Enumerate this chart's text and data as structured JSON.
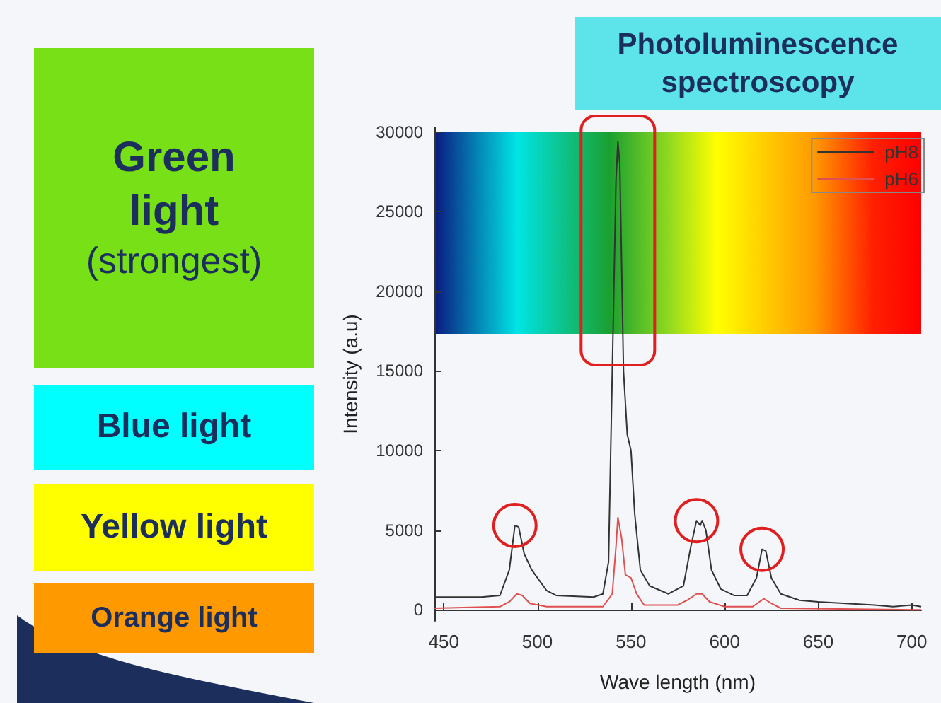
{
  "chart_data": {
    "type": "line",
    "title": "Photoluminescence spectroscopy",
    "xlabel": "Wave length (nm)",
    "ylabel": "Intensity (a.u)",
    "annotations": [
      "Green light\n(strongest)",
      "Blue light",
      "Yellow light",
      "Orange light"
    ],
    "xlim": [
      445,
      705
    ],
    "xticks": [
      450,
      500,
      550,
      600,
      650,
      700
    ],
    "ylim": [
      -700,
      30300
    ],
    "yticks": [
      0,
      5000,
      10000,
      15000,
      20000,
      25000,
      30000
    ],
    "grid": false,
    "legend": "top right",
    "marker": "none",
    "line_style": "solid",
    "series": [
      {
        "name": "pH8",
        "color": "#333333",
        "x": [
          445,
          470,
          480,
          485,
          488,
          490,
          493,
          497,
          505,
          510,
          530,
          535,
          538,
          540,
          542,
          543,
          544,
          546,
          548,
          550,
          552,
          555,
          560,
          570,
          578,
          582,
          585,
          587,
          588,
          590,
          593,
          598,
          605,
          612,
          617,
          620,
          622,
          625,
          630,
          640,
          650,
          680,
          690,
          700,
          705
        ],
        "values": [
          800,
          800,
          900,
          2500,
          5300,
          5200,
          3500,
          2500,
          1200,
          900,
          800,
          1000,
          3000,
          15000,
          27000,
          29400,
          28000,
          15000,
          11000,
          10000,
          6000,
          2500,
          1500,
          1000,
          1500,
          4000,
          5600,
          5300,
          5600,
          5000,
          2500,
          1300,
          900,
          900,
          2000,
          3800,
          3700,
          2000,
          1000,
          600,
          500,
          300,
          200,
          300,
          200
        ]
      },
      {
        "name": "pH6",
        "color": "#e05050",
        "x": [
          445,
          480,
          485,
          489,
          492,
          496,
          505,
          535,
          540,
          542,
          543,
          545,
          547,
          550,
          553,
          557,
          575,
          580,
          585,
          588,
          592,
          600,
          615,
          621,
          625,
          630,
          700,
          705
        ],
        "values": [
          100,
          200,
          500,
          1000,
          900,
          400,
          200,
          200,
          1000,
          4000,
          5800,
          4500,
          2200,
          2000,
          1000,
          300,
          300,
          600,
          1000,
          1000,
          500,
          200,
          200,
          700,
          400,
          100,
          0,
          0
        ]
      }
    ]
  }
}
